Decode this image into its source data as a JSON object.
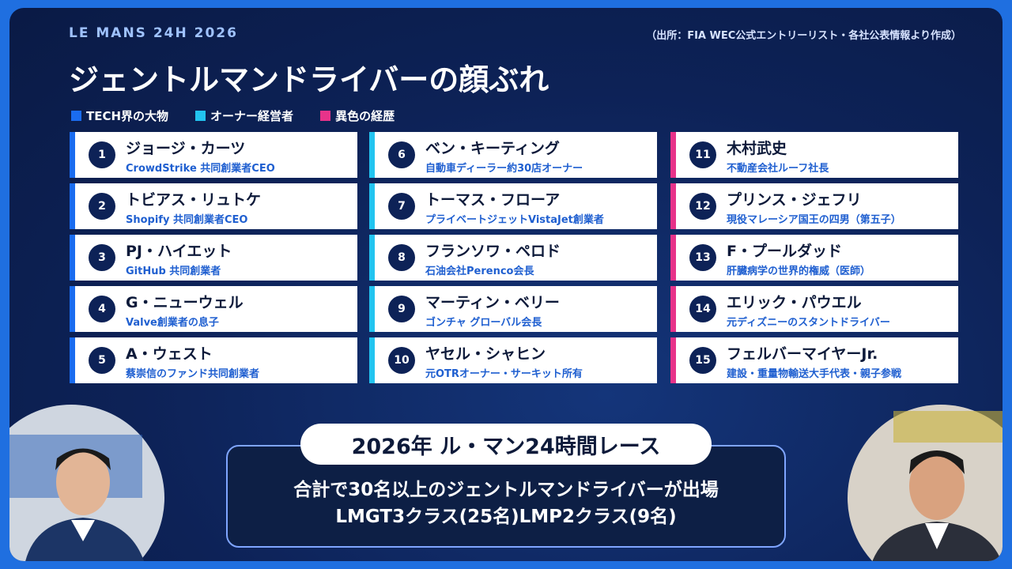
{
  "header": {
    "kicker": "LE MANS 24H 2026",
    "source": "（出所：FIA WEC公式エントリーリスト・各社公表情報より作成）",
    "title": "ジェントルマンドライバーの顔ぶれ"
  },
  "legend": [
    {
      "label": "TECH界の大物",
      "color": "#1a6cf0"
    },
    {
      "label": "オーナー経営者",
      "color": "#22c4f0"
    },
    {
      "label": "異色の経歴",
      "color": "#e8338a"
    }
  ],
  "cards": [
    {
      "number": "1",
      "name": "ジョージ・カーツ",
      "desc": "CrowdStrike 共同創業者CEO"
    },
    {
      "number": "2",
      "name": "トビアス・リュトケ",
      "desc": "Shopify 共同創業者CEO"
    },
    {
      "number": "3",
      "name": "PJ・ハイエット",
      "desc": "GitHub 共同創業者"
    },
    {
      "number": "4",
      "name": "G・ニューウェル",
      "desc": "Valve創業者の息子"
    },
    {
      "number": "5",
      "name": "A・ウェスト",
      "desc": "蔡崇信のファンド共同創業者"
    },
    {
      "number": "6",
      "name": "ベン・キーティング",
      "desc": "自動車ディーラー約30店オーナー"
    },
    {
      "number": "7",
      "name": "トーマス・フローア",
      "desc": "プライベートジェットVistaJet創業者"
    },
    {
      "number": "8",
      "name": "フランソワ・ペロド",
      "desc": "石油会社Perenco会長"
    },
    {
      "number": "9",
      "name": "マーティン・ベリー",
      "desc": "ゴンチャ グローバル会長"
    },
    {
      "number": "10",
      "name": "ヤセル・シャヒン",
      "desc": "元OTRオーナー・サーキット所有"
    },
    {
      "number": "11",
      "name": "木村武史",
      "desc": "不動産会社ルーフ社長"
    },
    {
      "number": "12",
      "name": "プリンス・ジェフリ",
      "desc": "現役マレーシア国王の四男（第五子）"
    },
    {
      "number": "13",
      "name": "F・プールダッド",
      "desc": "肝臓病学の世界的権威（医師）"
    },
    {
      "number": "14",
      "name": "エリック・パウエル",
      "desc": "元ディズニーのスタントドライバー"
    },
    {
      "number": "15",
      "name": "フェルバーマイヤーJr.",
      "desc": "建設・重量物輸送大手代表・親子参戦"
    }
  ],
  "caption": {
    "title": "2026年 ル・マン24時間レース",
    "lines": [
      "合計で30名以上のジェントルマンドライバーが出場",
      "LMGT3クラス(25名)LMP2クラス(9名)"
    ]
  }
}
